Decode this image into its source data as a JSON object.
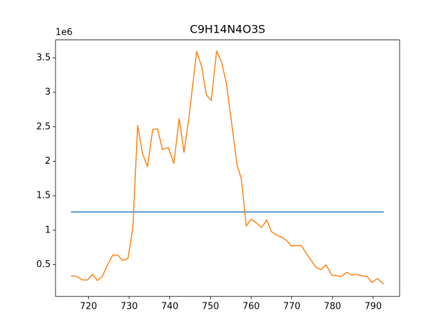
{
  "chart_data": {
    "type": "line",
    "title": "C9H14N4O3S",
    "y_offset_text": "1e6",
    "series": [
      {
        "color": "#1f77b4",
        "x": [
          715.7,
          792.6
        ],
        "values": [
          1.265,
          1.265
        ]
      },
      {
        "color": "#ff7f0e",
        "x": [
          715.7,
          717.1,
          718.5,
          719.8,
          721.0,
          722.2,
          723.4,
          724.8,
          726.0,
          727.2,
          728.4,
          729.7,
          730.9,
          732.1,
          733.3,
          734.5,
          735.8,
          737.0,
          738.2,
          739.6,
          741.0,
          742.3,
          743.5,
          744.7,
          746.6,
          747.8,
          749.0,
          750.2,
          751.5,
          752.7,
          753.9,
          755.3,
          756.5,
          757.6,
          758.8,
          760.0,
          761.4,
          762.6,
          763.8,
          765.0,
          766.2,
          767.5,
          768.7,
          769.9,
          771.1,
          772.3,
          773.5,
          774.9,
          776.0,
          777.2,
          778.4,
          779.8,
          781.0,
          782.2,
          783.5,
          784.7,
          785.9,
          787.1,
          788.5,
          789.7,
          791.0,
          792.6
        ],
        "values": [
          0.34,
          0.33,
          0.28,
          0.28,
          0.36,
          0.27,
          0.33,
          0.51,
          0.64,
          0.64,
          0.56,
          0.59,
          1.02,
          2.52,
          2.11,
          1.92,
          2.46,
          2.47,
          2.17,
          2.2,
          1.97,
          2.62,
          2.13,
          2.63,
          3.59,
          3.38,
          2.96,
          2.88,
          3.6,
          3.44,
          3.14,
          2.51,
          1.96,
          1.74,
          1.06,
          1.16,
          1.1,
          1.04,
          1.15,
          0.98,
          0.93,
          0.9,
          0.85,
          0.77,
          0.78,
          0.78,
          0.67,
          0.55,
          0.46,
          0.43,
          0.5,
          0.35,
          0.34,
          0.33,
          0.39,
          0.35,
          0.36,
          0.34,
          0.33,
          0.24,
          0.3,
          0.22
        ]
      }
    ],
    "xlim": [
      711.9,
      796.5
    ],
    "xticks": [
      720,
      730,
      740,
      750,
      760,
      770,
      780,
      790
    ],
    "ylim": [
      0.041,
      3.759
    ],
    "yticks": [
      0.5,
      1.0,
      1.5,
      2.0,
      2.5,
      3.0,
      3.5
    ]
  }
}
